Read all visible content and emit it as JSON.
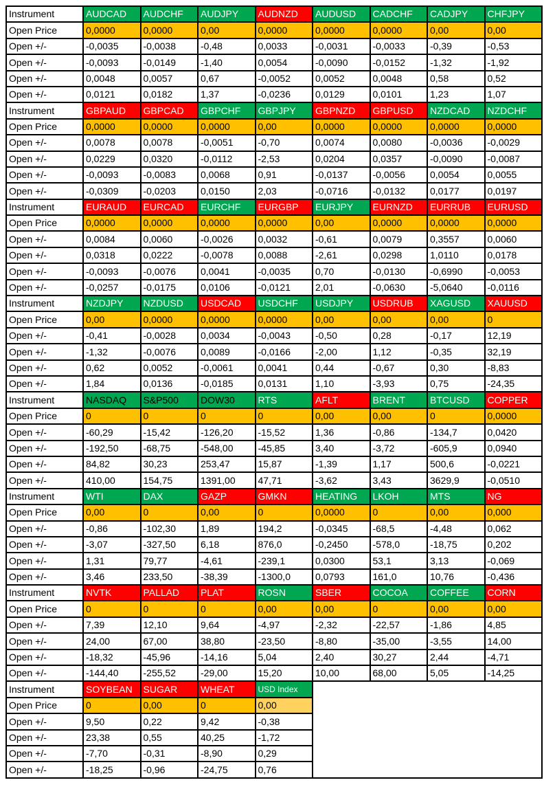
{
  "labels": {
    "instrument": "Instrument",
    "open_price": "Open Price",
    "open_change": "Open +/-"
  },
  "colors": {
    "green": "#00A650",
    "red": "#FF0000",
    "orange": "#FFC000",
    "gold": "#FFD25F",
    "label_blue": "#B8CCE4",
    "border": "#000000",
    "header_text_light": "#FFFFFF",
    "header_text_dark": "#000000"
  },
  "blocks": [
    {
      "instruments": [
        {
          "label": "AUDCAD",
          "bg": "green",
          "text": "white"
        },
        {
          "label": "AUDCHF",
          "bg": "green",
          "text": "white"
        },
        {
          "label": "AUDJPY",
          "bg": "green",
          "text": "white"
        },
        {
          "label": "AUDNZD",
          "bg": "red",
          "text": "white"
        },
        {
          "label": "AUDUSD",
          "bg": "green",
          "text": "white"
        },
        {
          "label": "CADCHF",
          "bg": "green",
          "text": "white"
        },
        {
          "label": "CADJPY",
          "bg": "green",
          "text": "white"
        },
        {
          "label": "CHFJPY",
          "bg": "green",
          "text": "white"
        }
      ],
      "open_price": [
        "0,0000",
        "0,0000",
        "0,00",
        "0,0000",
        "0,0000",
        "0,0000",
        "0,00",
        "0,00"
      ],
      "changes": [
        [
          "-0,0035",
          "-0,0038",
          "-0,48",
          "0,0033",
          "-0,0031",
          "-0,0033",
          "-0,39",
          "-0,53"
        ],
        [
          "-0,0093",
          "-0,0149",
          "-1,40",
          "0,0054",
          "-0,0090",
          "-0,0152",
          "-1,32",
          "-1,92"
        ],
        [
          "0,0048",
          "0,0057",
          "0,67",
          "-0,0052",
          "0,0052",
          "0,0048",
          "0,58",
          "0,52"
        ],
        [
          "0,0121",
          "0,0182",
          "1,37",
          "-0,0236",
          "0,0129",
          "0,0101",
          "1,23",
          "1,07"
        ]
      ]
    },
    {
      "instruments": [
        {
          "label": "GBPAUD",
          "bg": "red",
          "text": "white"
        },
        {
          "label": "GBPCAD",
          "bg": "red",
          "text": "white"
        },
        {
          "label": "GBPCHF",
          "bg": "green",
          "text": "white"
        },
        {
          "label": "GBPJPY",
          "bg": "green",
          "text": "white"
        },
        {
          "label": "GBPNZD",
          "bg": "red",
          "text": "white"
        },
        {
          "label": "GBPUSD",
          "bg": "red",
          "text": "white"
        },
        {
          "label": "NZDCAD",
          "bg": "green",
          "text": "white"
        },
        {
          "label": "NZDCHF",
          "bg": "green",
          "text": "white"
        }
      ],
      "open_price": [
        "0,0000",
        "0,0000",
        "0,0000",
        "0,00",
        "0,0000",
        "0,0000",
        "0,0000",
        "0,0000"
      ],
      "changes": [
        [
          "0,0078",
          "0,0078",
          "-0,0051",
          "-0,70",
          "0,0074",
          "0,0080",
          "-0,0036",
          "-0,0029"
        ],
        [
          "0,0229",
          "0,0320",
          "-0,0112",
          "-2,53",
          "0,0204",
          "0,0357",
          "-0,0090",
          "-0,0087"
        ],
        [
          "-0,0093",
          "-0,0083",
          "0,0068",
          "0,91",
          "-0,0137",
          "-0,0056",
          "0,0054",
          "0,0055"
        ],
        [
          "-0,0309",
          "-0,0203",
          "0,0150",
          "2,03",
          "-0,0716",
          "-0,0132",
          "0,0177",
          "0,0197"
        ]
      ]
    },
    {
      "instruments": [
        {
          "label": "EURAUD",
          "bg": "red",
          "text": "white"
        },
        {
          "label": "EURCAD",
          "bg": "red",
          "text": "white"
        },
        {
          "label": "EURCHF",
          "bg": "green",
          "text": "white"
        },
        {
          "label": "EURGBP",
          "bg": "red",
          "text": "white"
        },
        {
          "label": "EURJPY",
          "bg": "green",
          "text": "white"
        },
        {
          "label": "EURNZD",
          "bg": "red",
          "text": "white"
        },
        {
          "label": "EURRUB",
          "bg": "red",
          "text": "white"
        },
        {
          "label": "EURUSD",
          "bg": "red",
          "text": "white"
        }
      ],
      "open_price": [
        "0,0000",
        "0,0000",
        "0,0000",
        "0,0000",
        "0,00",
        "0,0000",
        "0,0000",
        "0,0000"
      ],
      "changes": [
        [
          "0,0084",
          "0,0060",
          "-0,0026",
          "0,0032",
          "-0,61",
          "0,0079",
          "0,3557",
          "0,0060"
        ],
        [
          "0,0318",
          "0,0222",
          "-0,0078",
          "0,0088",
          "-2,61",
          "0,0298",
          "1,0110",
          "0,0178"
        ],
        [
          "-0,0093",
          "-0,0076",
          "0,0041",
          "-0,0035",
          "0,70",
          "-0,0130",
          "-0,6990",
          "-0,0053"
        ],
        [
          "-0,0257",
          "-0,0175",
          "0,0106",
          "-0,0121",
          "2,01",
          "-0,0630",
          "-5,0640",
          "-0,0116"
        ]
      ]
    },
    {
      "instruments": [
        {
          "label": "NZDJPY",
          "bg": "green",
          "text": "white"
        },
        {
          "label": "NZDUSD",
          "bg": "green",
          "text": "white"
        },
        {
          "label": "USDCAD",
          "bg": "red",
          "text": "white"
        },
        {
          "label": "USDCHF",
          "bg": "green",
          "text": "white"
        },
        {
          "label": "USDJPY",
          "bg": "green",
          "text": "white"
        },
        {
          "label": "USDRUB",
          "bg": "red",
          "text": "white"
        },
        {
          "label": "XAGUSD",
          "bg": "green",
          "text": "white"
        },
        {
          "label": "XAUUSD",
          "bg": "red",
          "text": "white"
        }
      ],
      "open_price": [
        "0,00",
        "0,0000",
        "0,0000",
        "0,0000",
        "0,00",
        "0,00",
        "0,00",
        "0"
      ],
      "changes": [
        [
          "-0,41",
          "-0,0028",
          "0,0034",
          "-0,0043",
          "-0,50",
          "0,28",
          "-0,17",
          "12,19"
        ],
        [
          "-1,32",
          "-0,0076",
          "0,0089",
          "-0,0166",
          "-2,00",
          "1,12",
          "-0,35",
          "32,19"
        ],
        [
          "0,62",
          "0,0052",
          "-0,0061",
          "0,0041",
          "0,44",
          "-0,67",
          "0,30",
          "-8,83"
        ],
        [
          "1,84",
          "0,0136",
          "-0,0185",
          "0,0131",
          "1,10",
          "-3,93",
          "0,75",
          "-24,35"
        ]
      ]
    },
    {
      "instruments": [
        {
          "label": "NASDAQ",
          "bg": "green",
          "text": "black"
        },
        {
          "label": "S&P500",
          "bg": "green",
          "text": "black"
        },
        {
          "label": "DOW30",
          "bg": "green",
          "text": "black"
        },
        {
          "label": "RTS",
          "bg": "green",
          "text": "white"
        },
        {
          "label": "AFLT",
          "bg": "red",
          "text": "white"
        },
        {
          "label": "BRENT",
          "bg": "green",
          "text": "white"
        },
        {
          "label": "BTCUSD",
          "bg": "green",
          "text": "white"
        },
        {
          "label": "COPPER",
          "bg": "red",
          "text": "white"
        }
      ],
      "open_price": [
        "0",
        "0",
        "0",
        "0",
        "0,00",
        "0,00",
        "0",
        "0,0000"
      ],
      "changes": [
        [
          "-60,29",
          "-15,42",
          "-126,20",
          "-15,52",
          "1,36",
          "-0,86",
          "-134,7",
          "0,0420"
        ],
        [
          "-192,50",
          "-68,75",
          "-548,00",
          "-45,85",
          "3,40",
          "-3,72",
          "-605,9",
          "0,0940"
        ],
        [
          "84,82",
          "30,23",
          "253,47",
          "15,87",
          "-1,39",
          "1,17",
          "500,6",
          "-0,0221"
        ],
        [
          "410,00",
          "154,75",
          "1391,00",
          "47,71",
          "-3,62",
          "3,43",
          "3629,9",
          "-0,0510"
        ]
      ]
    },
    {
      "instruments": [
        {
          "label": "WTI",
          "bg": "green",
          "text": "white"
        },
        {
          "label": "DAX",
          "bg": "green",
          "text": "white"
        },
        {
          "label": "GAZP",
          "bg": "red",
          "text": "white"
        },
        {
          "label": "GMKN",
          "bg": "red",
          "text": "white"
        },
        {
          "label": "HEATING",
          "bg": "green",
          "text": "white"
        },
        {
          "label": "LKOH",
          "bg": "green",
          "text": "white"
        },
        {
          "label": "MTS",
          "bg": "green",
          "text": "white"
        },
        {
          "label": "NG",
          "bg": "red",
          "text": "white"
        }
      ],
      "open_price": [
        "0,00",
        "0",
        "0,00",
        "0",
        "0,0000",
        "0",
        "0,00",
        "0,000"
      ],
      "changes": [
        [
          "-0,86",
          "-102,30",
          "1,89",
          "194,2",
          "-0,0345",
          "-68,5",
          "-4,48",
          "0,062"
        ],
        [
          "-3,07",
          "-327,50",
          "6,18",
          "876,0",
          "-0,2450",
          "-578,0",
          "-18,75",
          "0,202"
        ],
        [
          "1,31",
          "79,77",
          "-4,61",
          "-239,1",
          "0,0300",
          "53,1",
          "3,13",
          "-0,069"
        ],
        [
          "3,46",
          "233,50",
          "-38,39",
          "-1300,0",
          "0,0793",
          "161,0",
          "10,76",
          "-0,436"
        ]
      ]
    },
    {
      "instruments": [
        {
          "label": "NVTK",
          "bg": "red",
          "text": "white"
        },
        {
          "label": "PALLAD",
          "bg": "red",
          "text": "white"
        },
        {
          "label": "PLAT",
          "bg": "red",
          "text": "white"
        },
        {
          "label": "ROSN",
          "bg": "green",
          "text": "white"
        },
        {
          "label": "SBER",
          "bg": "red",
          "text": "white"
        },
        {
          "label": "COCOA",
          "bg": "green",
          "text": "white"
        },
        {
          "label": "COFFEE",
          "bg": "green",
          "text": "white"
        },
        {
          "label": "CORN",
          "bg": "red",
          "text": "white"
        }
      ],
      "open_price": [
        "0",
        "0",
        "0",
        "0,00",
        "0,00",
        "0",
        "0,00",
        "0,00"
      ],
      "changes": [
        [
          "7,39",
          "12,10",
          "9,64",
          "-4,97",
          "-2,32",
          "-22,57",
          "-1,86",
          "4,85"
        ],
        [
          "24,00",
          "67,00",
          "38,80",
          "-23,50",
          "-8,80",
          "-35,00",
          "-3,55",
          "14,00"
        ],
        [
          "-18,32",
          "-45,96",
          "-14,16",
          "5,04",
          "2,40",
          "30,27",
          "2,44",
          "-4,71"
        ],
        [
          "-144,40",
          "-255,52",
          "-29,00",
          "15,20",
          "10,00",
          "68,00",
          "5,05",
          "-14,25"
        ]
      ]
    },
    {
      "instruments": [
        {
          "label": "SOYBEAN",
          "bg": "red",
          "text": "white"
        },
        {
          "label": "SUGAR",
          "bg": "red",
          "text": "white"
        },
        {
          "label": "WHEAT",
          "bg": "red",
          "text": "white"
        },
        {
          "label": "USD Index",
          "bg": "green",
          "text": "white",
          "small": true
        }
      ],
      "open_price": [
        "0",
        "0,00",
        "0",
        "0,00"
      ],
      "open_price_bg": [
        "orange",
        "orange",
        "orange",
        "gold"
      ],
      "changes": [
        [
          "9,50",
          "0,22",
          "9,42",
          "-0,38"
        ],
        [
          "23,38",
          "0,55",
          "40,25",
          "-1,72"
        ],
        [
          "-7,70",
          "-0,31",
          "-8,90",
          "0,29"
        ],
        [
          "-18,25",
          "-0,96",
          "-24,75",
          "0,76"
        ]
      ]
    }
  ]
}
